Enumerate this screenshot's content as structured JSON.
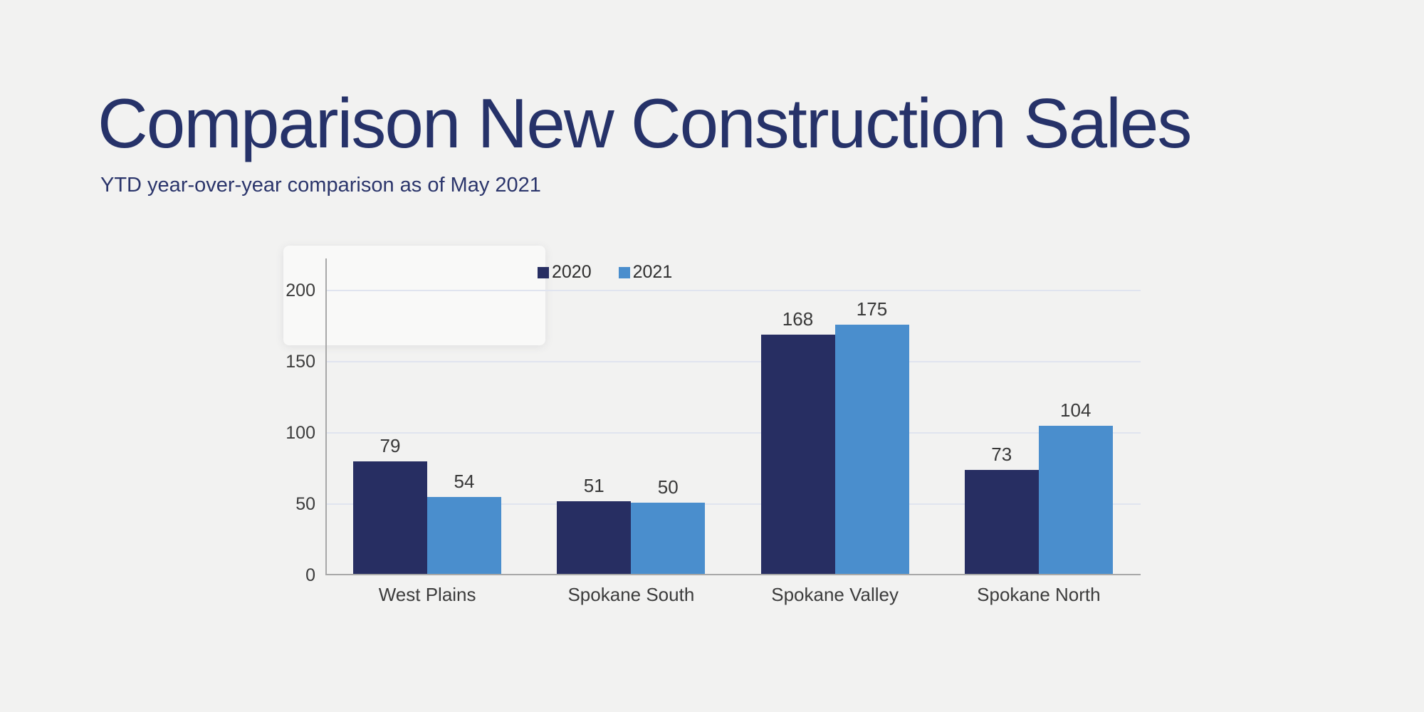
{
  "page": {
    "title": "Comparison New Construction Sales",
    "subtitle": "YTD year-over-year comparison as of May 2021"
  },
  "chart_data": {
    "type": "bar",
    "title": "Comparison New Construction Sales",
    "subtitle": "YTD year-over-year comparison as of May 2021",
    "categories": [
      "West Plains",
      "Spokane South",
      "Spokane Valley",
      "Spokane North"
    ],
    "series": [
      {
        "name": "2020",
        "color": "#272e62",
        "values": [
          79,
          51,
          168,
          73
        ]
      },
      {
        "name": "2021",
        "color": "#4a8ecd",
        "values": [
          54,
          50,
          175,
          104
        ]
      }
    ],
    "xlabel": "",
    "ylabel": "",
    "ylim": [
      0,
      222
    ],
    "yticks": [
      0,
      50,
      100,
      150,
      200
    ],
    "grid": true,
    "legend_position": "top",
    "colors": {
      "background": "#f2f2f1",
      "title_text": "#263269",
      "gridline": "#e0e4ef",
      "axis_line": "#a8a8a8",
      "tick_label_text": "#3c3c3c",
      "value_label_text": "#383838"
    }
  }
}
